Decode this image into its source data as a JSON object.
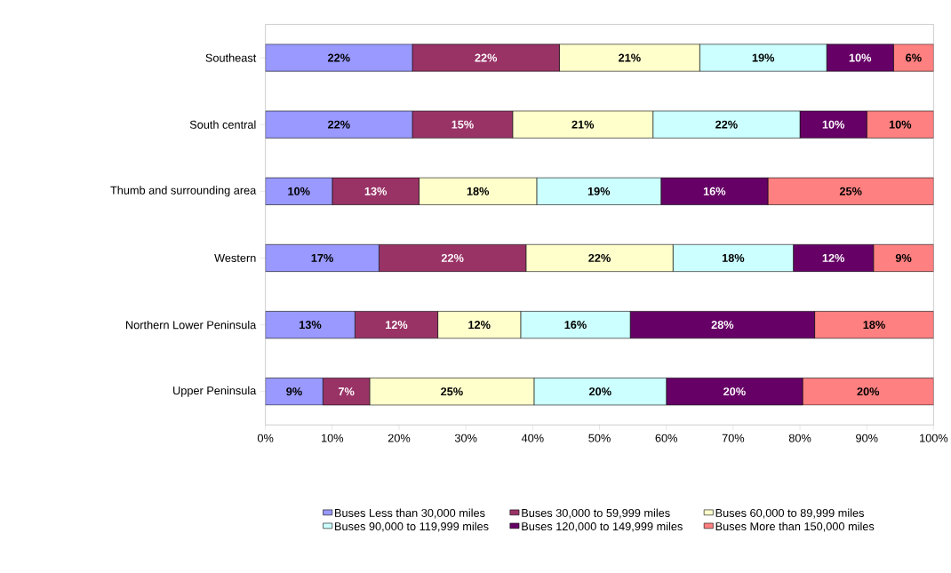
{
  "chart_data": {
    "type": "bar",
    "orientation": "horizontal",
    "stacked": true,
    "legend": "bottom",
    "categories": [
      "Southeast",
      "South central",
      "Thumb and surrounding area",
      "Western",
      "Northern Lower Peninsula",
      "Upper Peninsula"
    ],
    "xlim": [
      0,
      100
    ],
    "xticks": [
      {
        "value": 0,
        "label": "0%"
      },
      {
        "value": 10,
        "label": "10%"
      },
      {
        "value": 20,
        "label": "20%"
      },
      {
        "value": 30,
        "label": "30%"
      },
      {
        "value": 40,
        "label": "40%"
      },
      {
        "value": 50,
        "label": "50%"
      },
      {
        "value": 60,
        "label": "60%"
      },
      {
        "value": 70,
        "label": "70%"
      },
      {
        "value": 80,
        "label": "80%"
      },
      {
        "value": 90,
        "label": "90%"
      },
      {
        "value": 100,
        "label": "100%"
      }
    ],
    "series": [
      {
        "name": "Buses Less than 30,000 miles",
        "color": "#9999ff",
        "values": [
          22,
          22,
          10,
          17,
          13.4,
          8.6
        ],
        "value_labels": [
          "22%",
          "22%",
          "10%",
          "17%",
          "13%",
          "9%"
        ]
      },
      {
        "name": "Buses 30,000 to 59,999 miles",
        "color": "#993366",
        "values": [
          22,
          15,
          13,
          22,
          12.4,
          7
        ],
        "value_labels": [
          "22%",
          "15%",
          "13%",
          "22%",
          "12%",
          "7%"
        ]
      },
      {
        "name": "Buses 60,000 to 89,999 miles",
        "color": "#ffffcc",
        "values": [
          21,
          21,
          17.6,
          22,
          12.4,
          24.6
        ],
        "value_labels": [
          "21%",
          "21%",
          "18%",
          "22%",
          "12%",
          "25%"
        ]
      },
      {
        "name": "Buses 90,000 to 119,999 miles",
        "color": "#ccffff",
        "values": [
          19,
          22,
          18.6,
          18,
          16.4,
          19.8
        ],
        "value_labels": [
          "19%",
          "22%",
          "19%",
          "18%",
          "16%",
          "20%"
        ]
      },
      {
        "name": "Buses 120,000 to 149,999 miles",
        "color": "#660066",
        "values": [
          10,
          10,
          16,
          12,
          27.6,
          20.4
        ],
        "value_labels": [
          "10%",
          "10%",
          "16%",
          "12%",
          "28%",
          "20%"
        ]
      },
      {
        "name": "Buses More than 150,000 miles",
        "color": "#ff8080",
        "values": [
          6,
          10,
          24.8,
          9,
          17.8,
          19.6
        ],
        "value_labels": [
          "6%",
          "10%",
          "25%",
          "9%",
          "18%",
          "20%"
        ]
      }
    ]
  }
}
